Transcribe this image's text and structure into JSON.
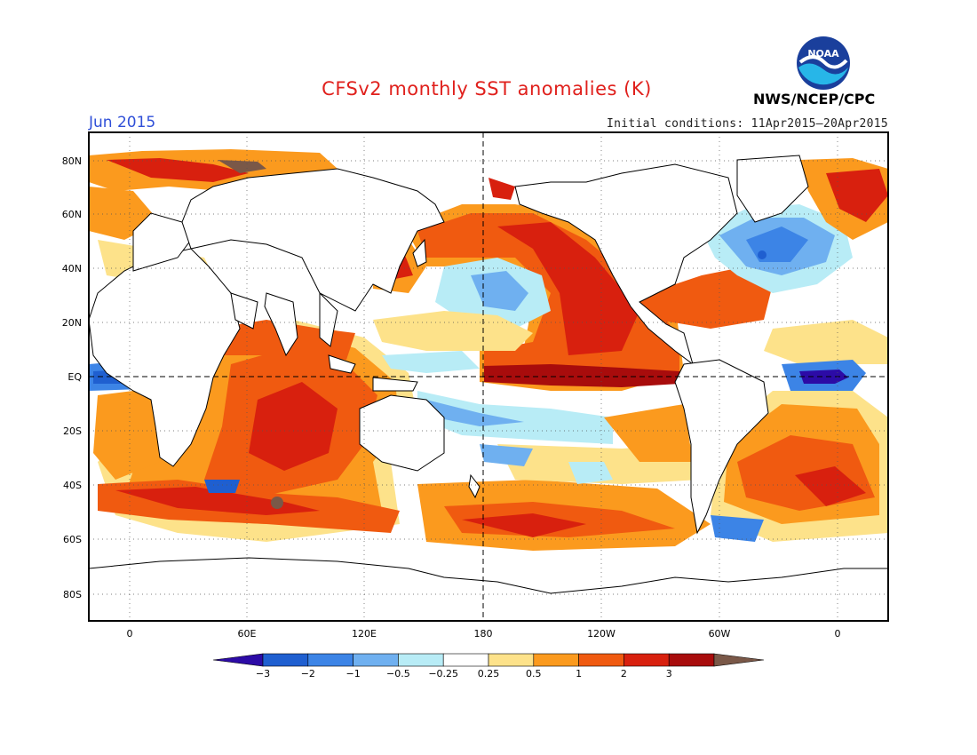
{
  "header": {
    "title": "CFSv2 monthly SST anomalies (K)",
    "period": "Jun 2015",
    "initial_conditions": "Initial conditions: 11Apr2015–20Apr2015",
    "agency": "NWS/NCEP/CPC",
    "logo_text": "NOAA"
  },
  "map": {
    "lat_labels": [
      "80N",
      "60N",
      "40N",
      "20N",
      "EQ",
      "20S",
      "40S",
      "60S",
      "80S"
    ],
    "lon_labels": [
      "0",
      "60E",
      "120E",
      "180",
      "120W",
      "60W",
      "0"
    ]
  },
  "colorbar": {
    "labels": [
      "−3",
      "−2",
      "−1",
      "−0.5",
      "−0.25",
      "0.25",
      "0.5",
      "1",
      "2",
      "3"
    ],
    "colors": [
      "#2c0ba6",
      "#1f5fd0",
      "#3c84e6",
      "#6fb0f0",
      "#b8ecf6",
      "#ffffff",
      "#fde28a",
      "#fb9a1e",
      "#f05a10",
      "#d8200e",
      "#a80c0c",
      "#7a5848"
    ]
  }
}
